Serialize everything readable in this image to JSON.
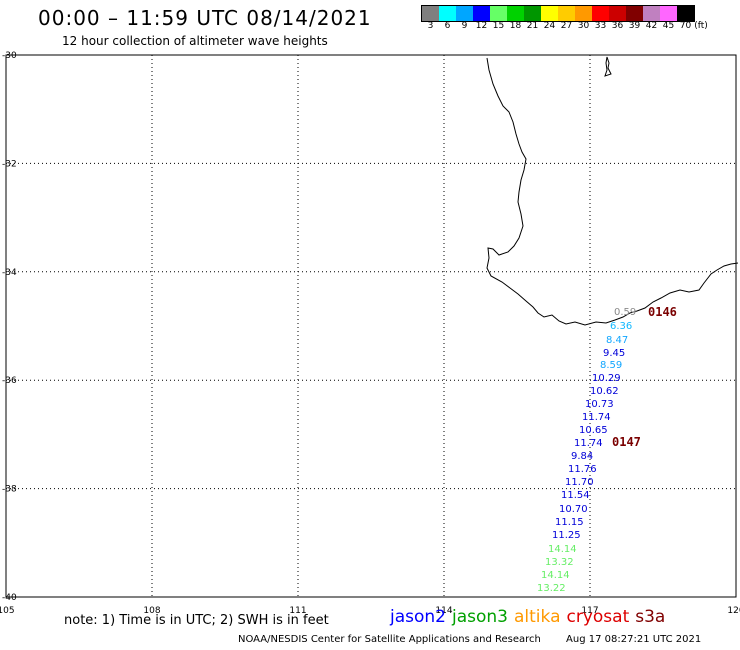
{
  "header": {
    "title": "00:00 – 11:59 UTC 08/14/2021",
    "subtitle": "12 hour collection of altimeter wave heights"
  },
  "legend": {
    "swatches": [
      {
        "color": "#7f7f7f",
        "label": "3"
      },
      {
        "color": "#00ffff",
        "label": "6"
      },
      {
        "color": "#00a6ff",
        "label": "9"
      },
      {
        "color": "#0000ff",
        "label": "12"
      },
      {
        "color": "#66ff66",
        "label": "15"
      },
      {
        "color": "#00d200",
        "label": "18"
      },
      {
        "color": "#009600",
        "label": "21"
      },
      {
        "color": "#ffff00",
        "label": "24"
      },
      {
        "color": "#ffcc00",
        "label": "27"
      },
      {
        "color": "#ff9900",
        "label": "30"
      },
      {
        "color": "#ff0000",
        "label": "33"
      },
      {
        "color": "#cc0000",
        "label": "36"
      },
      {
        "color": "#800000",
        "label": "39"
      },
      {
        "color": "#c080c0",
        "label": "42"
      },
      {
        "color": "#ff66ff",
        "label": "45"
      },
      {
        "color": "#000000",
        "label": "70"
      }
    ],
    "unit": "(ft)"
  },
  "map": {
    "lon_ticks": [
      "105",
      "108",
      "111",
      "114",
      "117",
      "120"
    ],
    "lat_ticks": [
      "-30",
      "-32",
      "-34",
      "-36",
      "-38",
      "-40"
    ],
    "lon_range": [
      105,
      120
    ],
    "lat_range": [
      -40,
      -30
    ],
    "passes": [
      {
        "label": "0146",
        "color": "#7a0000"
      },
      {
        "label": "0147",
        "color": "#7a0000"
      }
    ],
    "observations": [
      {
        "value": "0.59",
        "color": "#8a8a8a"
      },
      {
        "value": "6.36",
        "color": "#11b8ff"
      },
      {
        "value": "8.47",
        "color": "#11a6ff"
      },
      {
        "value": "9.45",
        "color": "#0000d8"
      },
      {
        "value": "8.59",
        "color": "#11a6ff"
      },
      {
        "value": "10.29",
        "color": "#0000d8"
      },
      {
        "value": "10.62",
        "color": "#0000d8"
      },
      {
        "value": "10.73",
        "color": "#0000d8"
      },
      {
        "value": "11.74",
        "color": "#0000d8"
      },
      {
        "value": "10.65",
        "color": "#0000d8"
      },
      {
        "value": "11.74",
        "color": "#0000d8"
      },
      {
        "value": "9.84",
        "color": "#0000d8"
      },
      {
        "value": "11.76",
        "color": "#0000d8"
      },
      {
        "value": "11.70",
        "color": "#0000d8"
      },
      {
        "value": "11.54",
        "color": "#0000d8"
      },
      {
        "value": "10.70",
        "color": "#0000d8"
      },
      {
        "value": "11.15",
        "color": "#0000d8"
      },
      {
        "value": "11.25",
        "color": "#0000d8"
      },
      {
        "value": "14.14",
        "color": "#66ee66"
      },
      {
        "value": "13.32",
        "color": "#66ee66"
      },
      {
        "value": "14.14",
        "color": "#66ee66"
      },
      {
        "value": "13.22",
        "color": "#66ee66"
      }
    ]
  },
  "footer": {
    "note": "note:  1) Time is in UTC;  2) SWH is in feet",
    "satellites": [
      {
        "name": "jason2",
        "color": "#0000ff"
      },
      {
        "name": "jason3",
        "color": "#00a000"
      },
      {
        "name": "altika",
        "color": "#ff9900"
      },
      {
        "name": "cryosat",
        "color": "#dd0000"
      },
      {
        "name": "s3a",
        "color": "#800000"
      }
    ],
    "credit": "NOAA/NESDIS Center for Satellite Applications and Research",
    "timestamp": "Aug 17 08:27:21 UTC 2021"
  }
}
